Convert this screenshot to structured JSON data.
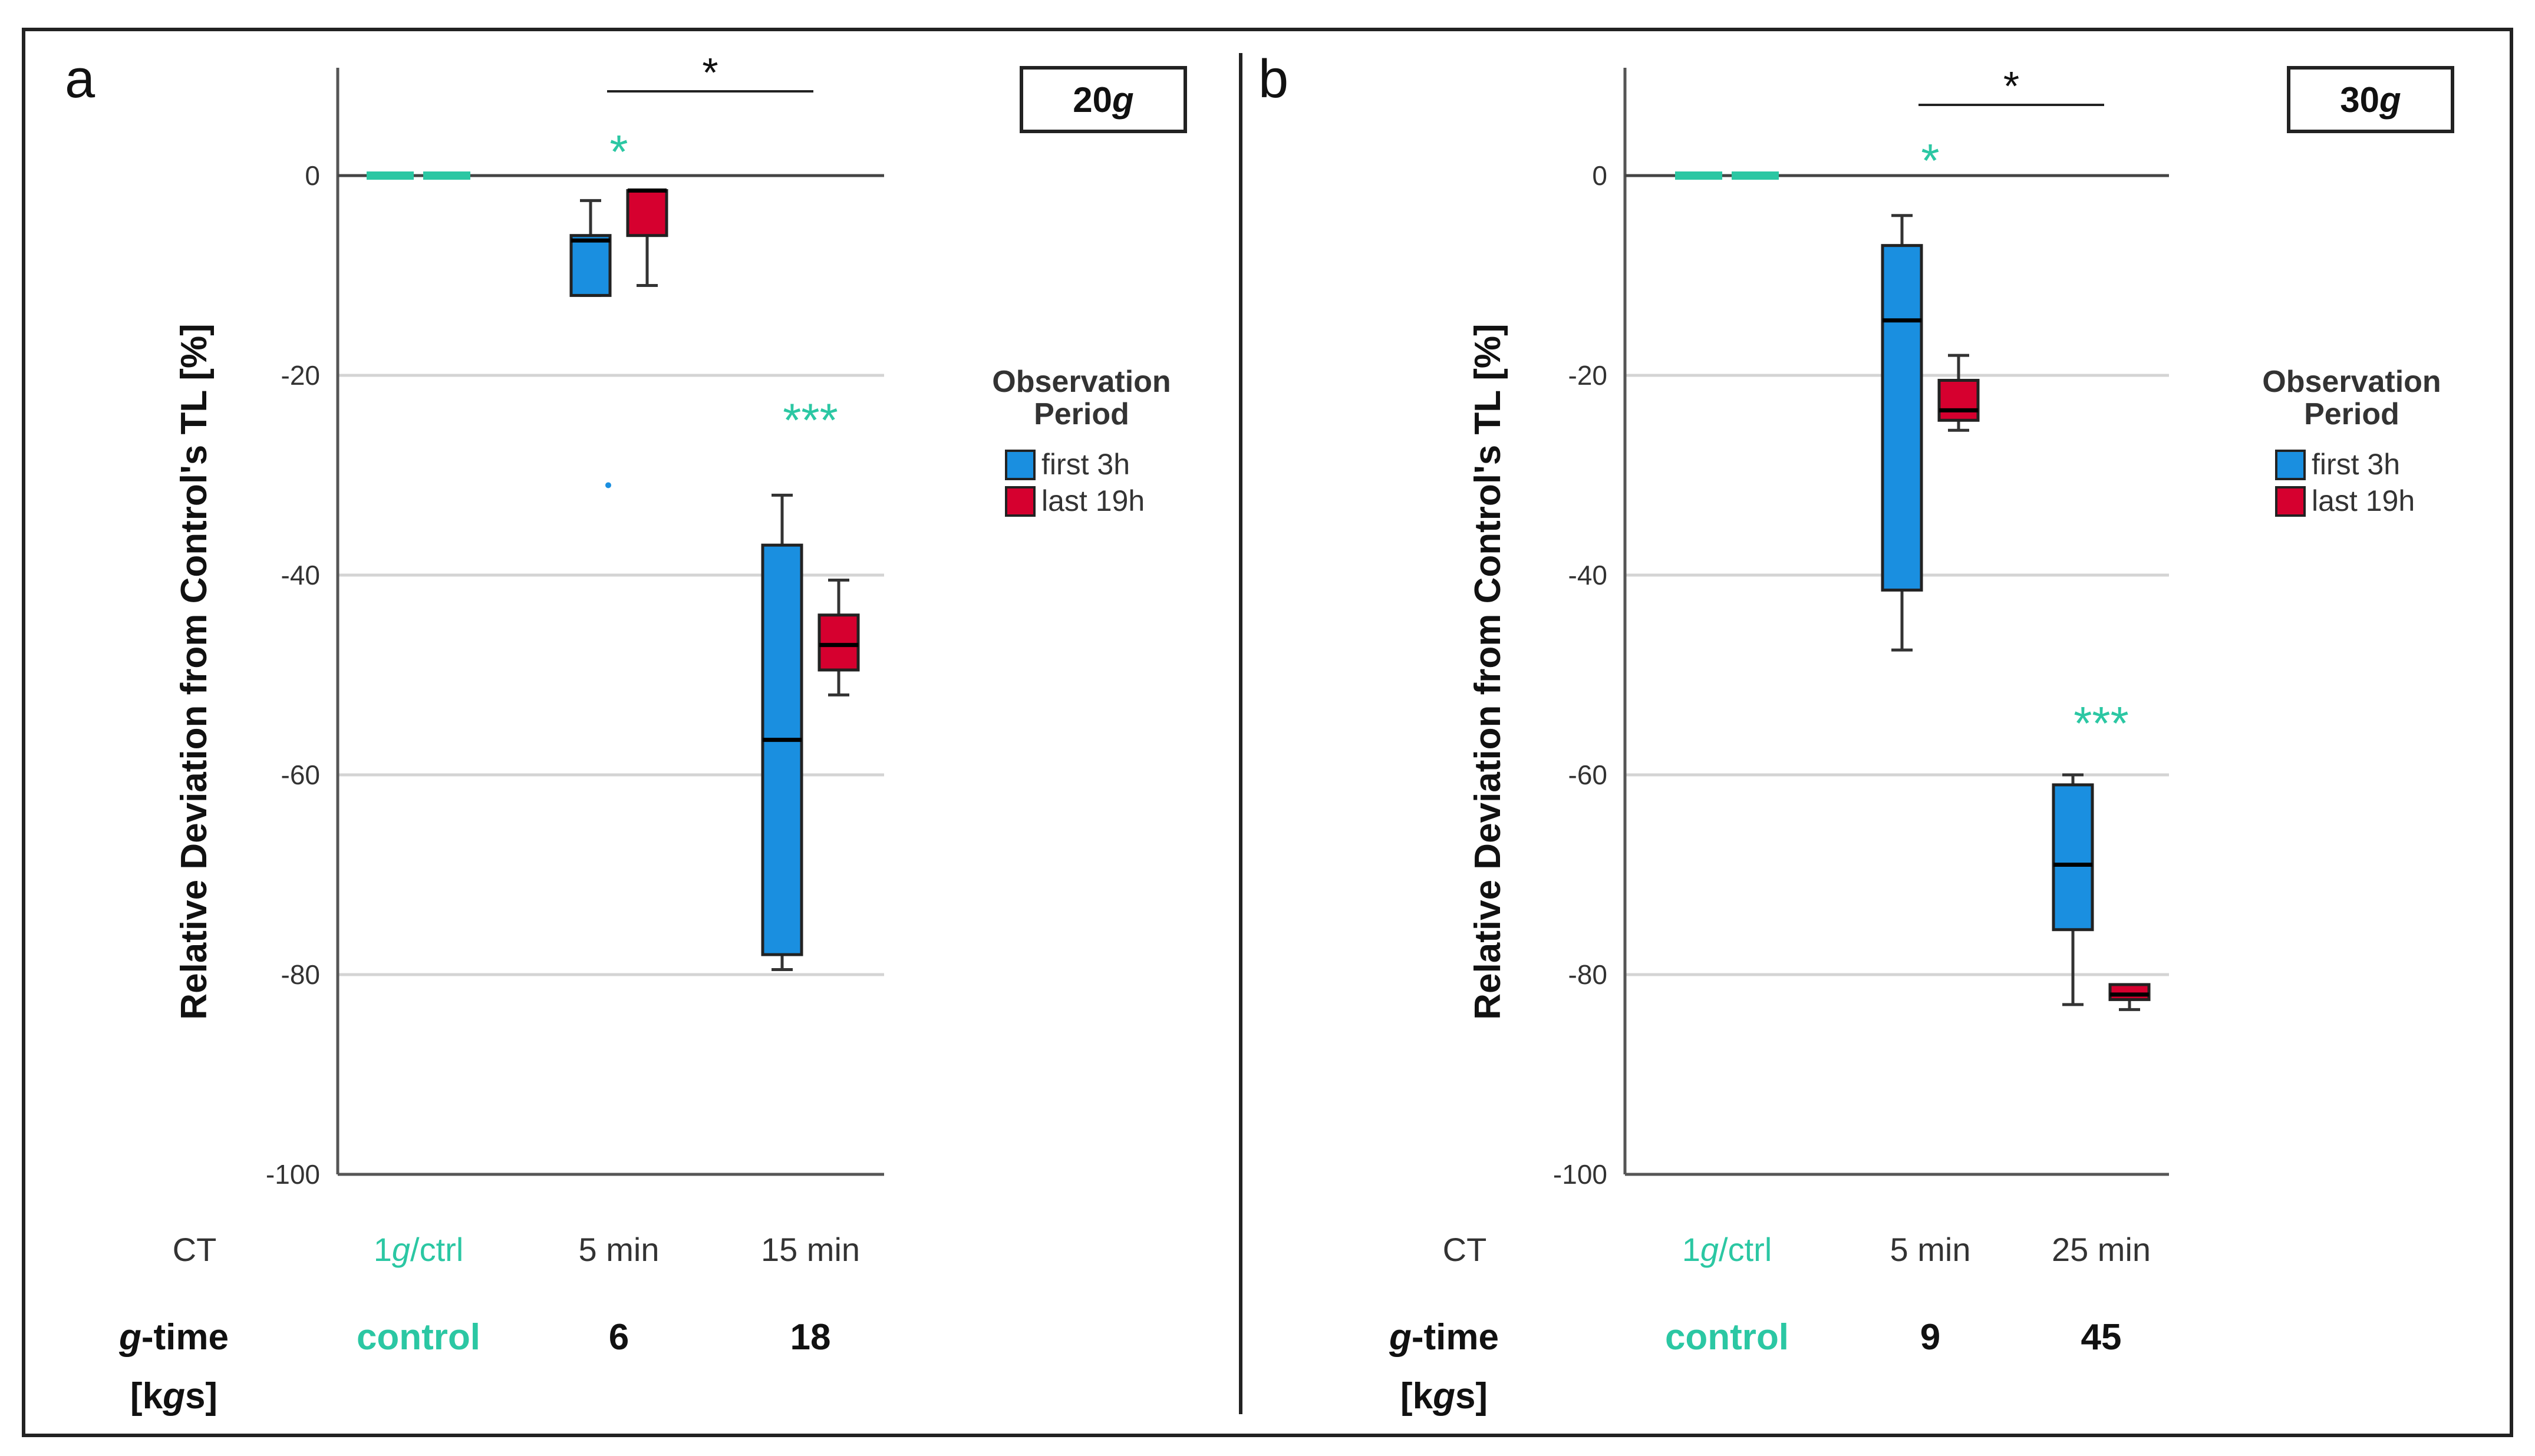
{
  "chart_data": [
    {
      "type": "boxplot",
      "panel_label": "a",
      "g_label": "20",
      "ylabel": "Relative Deviation from Control's TL [%]",
      "ylim": [
        -100,
        10
      ],
      "yticks": [
        0,
        -20,
        -40,
        -60,
        -80,
        -100
      ],
      "grid": true,
      "row_labels": {
        "ct": "CT",
        "gtime_italic": "g",
        "gtime_rest": "-time",
        "unit_open": "[k",
        "unit_italic": "g",
        "unit_close": "s]"
      },
      "groups": [
        {
          "ct_prefix": "1",
          "ct_italic": "g",
          "ct_suffix": "/ctrl",
          "gtime": "control",
          "control": true,
          "boxes": [
            {
              "series": "first 3h",
              "min": 0,
              "q1": 0,
              "median": 0,
              "q3": 0,
              "max": 0
            },
            {
              "series": "last 19h",
              "min": 0,
              "q1": 0,
              "median": 0,
              "q3": 0,
              "max": 0
            }
          ]
        },
        {
          "ct": "5 min",
          "gtime": "6",
          "sig": "*",
          "boxes": [
            {
              "series": "first 3h",
              "min": -12,
              "q1": -12,
              "median": -6.5,
              "q3": -6,
              "max": -2.5,
              "outliers": [
                -31
              ]
            },
            {
              "series": "last 19h",
              "min": -11,
              "q1": -6,
              "median": -1.5,
              "q3": -1.5,
              "max": -1.5
            }
          ]
        },
        {
          "ct": "15 min",
          "gtime": "18",
          "sig": "***",
          "boxes": [
            {
              "series": "first 3h",
              "min": -79.5,
              "q1": -78,
              "median": -56.5,
              "q3": -37,
              "max": -32
            },
            {
              "series": "last 19h",
              "min": -52,
              "q1": -49.5,
              "median": -47,
              "q3": -44,
              "max": -40.5
            }
          ]
        }
      ],
      "bracket": {
        "label": "*",
        "from_group": 1,
        "to_group": 2
      },
      "legend": {
        "title": "Observation Period",
        "entries": [
          "first 3h",
          "last 19h"
        ]
      }
    },
    {
      "type": "boxplot",
      "panel_label": "b",
      "g_label": "30",
      "ylabel": "Relative Deviation from Control's TL [%]",
      "ylim": [
        -100,
        10
      ],
      "yticks": [
        0,
        -20,
        -40,
        -60,
        -80,
        -100
      ],
      "grid": true,
      "row_labels": {
        "ct": "CT",
        "gtime_italic": "g",
        "gtime_rest": "-time",
        "unit_open": "[k",
        "unit_italic": "g",
        "unit_close": "s]"
      },
      "groups": [
        {
          "ct_prefix": "1",
          "ct_italic": "g",
          "ct_suffix": "/ctrl",
          "gtime": "control",
          "control": true,
          "boxes": [
            {
              "series": "first 3h",
              "min": 0,
              "q1": 0,
              "median": 0,
              "q3": 0,
              "max": 0
            },
            {
              "series": "last 19h",
              "min": 0,
              "q1": 0,
              "median": 0,
              "q3": 0,
              "max": 0
            }
          ]
        },
        {
          "ct": "5 min",
          "gtime": "9",
          "sig": "*",
          "boxes": [
            {
              "series": "first 3h",
              "min": -47.5,
              "q1": -41.5,
              "median": -14.5,
              "q3": -7,
              "max": -4
            },
            {
              "series": "last 19h",
              "min": -25.5,
              "q1": -24.5,
              "median": -23.5,
              "q3": -20.5,
              "max": -18
            }
          ]
        },
        {
          "ct": "25 min",
          "gtime": "45",
          "sig": "***",
          "boxes": [
            {
              "series": "first 3h",
              "min": -83,
              "q1": -75.5,
              "median": -69,
              "q3": -61,
              "max": -60
            },
            {
              "series": "last 19h",
              "min": -83.5,
              "q1": -82.5,
              "median": -82,
              "q3": -81,
              "max": -81
            }
          ]
        }
      ],
      "bracket": {
        "label": "*",
        "from_group": 1,
        "to_group": 2
      },
      "legend": {
        "title": "Observation Period",
        "entries": [
          "first 3h",
          "last 19h"
        ]
      }
    }
  ],
  "colors": {
    "first 3h": "#1a8fe0",
    "last 19h": "#d6002f",
    "control_text": "#2bc7a3",
    "axis": "#555555",
    "grid": "#d4d4d4",
    "text": "#111111"
  }
}
